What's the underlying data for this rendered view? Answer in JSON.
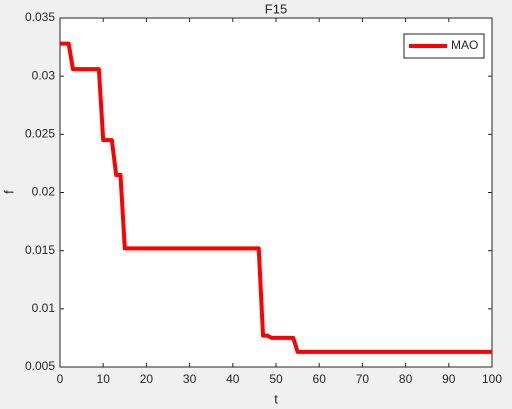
{
  "chart_data": {
    "type": "line",
    "title": "F15",
    "x_label": "t",
    "y_label": "f",
    "x": [
      0,
      2,
      3,
      9,
      10,
      12,
      13,
      14,
      15,
      46,
      47,
      48,
      49,
      54,
      55,
      100
    ],
    "series": [
      {
        "name": "MAO",
        "color": "#ff0000",
        "values": [
          0.0328,
          0.0328,
          0.0306,
          0.0306,
          0.0245,
          0.0245,
          0.0215,
          0.0215,
          0.0152,
          0.0152,
          0.0077,
          0.0077,
          0.0075,
          0.0075,
          0.0063,
          0.0063
        ]
      }
    ],
    "xlim": [
      0,
      100
    ],
    "xticks": [
      0,
      10,
      20,
      30,
      40,
      50,
      60,
      70,
      80,
      90,
      100
    ],
    "ylim": [
      0.005,
      0.035
    ],
    "yticks": [
      0.005,
      0.01,
      0.015,
      0.02,
      0.025,
      0.03,
      0.035
    ],
    "grid": false,
    "legend_position": "northeast"
  }
}
